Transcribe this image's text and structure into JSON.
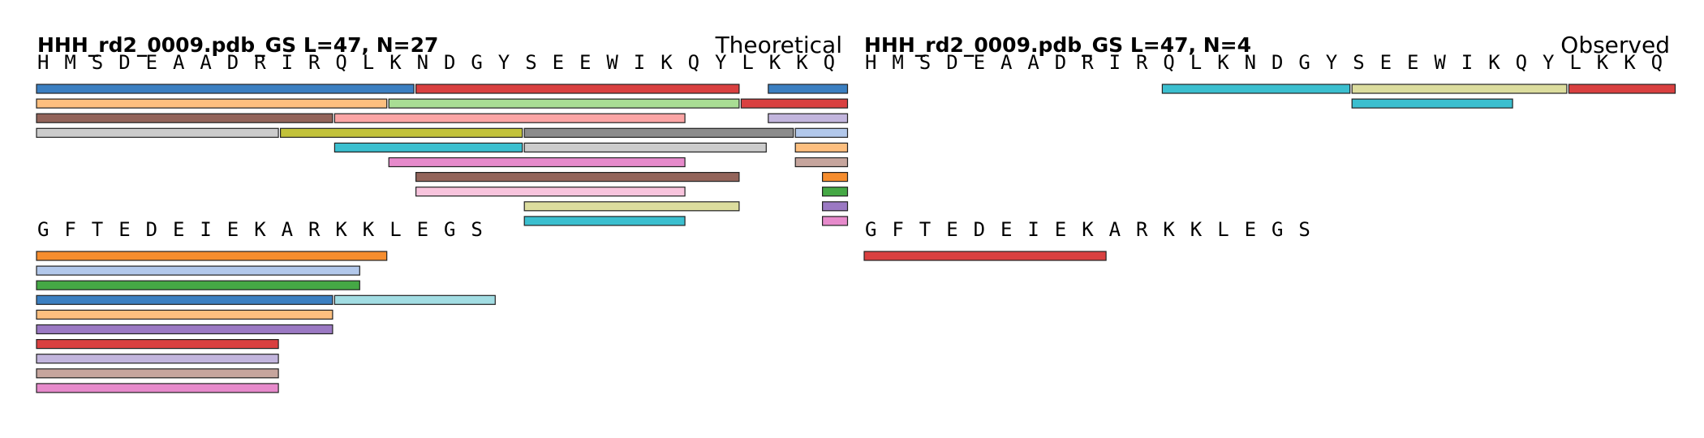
{
  "panels": [
    {
      "title": "HHH_rd2_0009.pdb_GS  L=47, N=27",
      "label": "Theoretical",
      "rows": [
        {
          "sequence": "HMSDEAADRIRQLKNDGYSEEWIKQYLKKQ",
          "start": 0,
          "tracks": [
            [
              {
                "s": 0,
                "e": 13,
                "c": "#3b7fc1"
              },
              {
                "s": 14,
                "e": 25,
                "c": "#d94040"
              },
              {
                "s": 27,
                "e": 29,
                "c": "#3b7fc1"
              }
            ],
            [
              {
                "s": 0,
                "e": 12,
                "c": "#fdbf7f"
              },
              {
                "s": 13,
                "e": 25,
                "c": "#a9dd94"
              },
              {
                "s": 26,
                "e": 29,
                "c": "#d94040"
              }
            ],
            [
              {
                "s": 0,
                "e": 10,
                "c": "#93645a"
              },
              {
                "s": 11,
                "e": 23,
                "c": "#fba5a5"
              },
              {
                "s": 27,
                "e": 29,
                "c": "#c2b5dd"
              }
            ],
            [
              {
                "s": 0,
                "e": 8,
                "c": "#cccccc"
              },
              {
                "s": 9,
                "e": 17,
                "c": "#c2c23a"
              },
              {
                "s": 18,
                "e": 27,
                "c": "#8c8c8c"
              },
              {
                "s": 28,
                "e": 29,
                "c": "#b2c8eb"
              }
            ],
            [
              {
                "s": 11,
                "e": 17,
                "c": "#3bbfcf"
              },
              {
                "s": 18,
                "e": 26,
                "c": "#cccccc"
              },
              {
                "s": 28,
                "e": 29,
                "c": "#fdbf7f"
              }
            ],
            [
              {
                "s": 13,
                "e": 23,
                "c": "#e68acb"
              },
              {
                "s": 28,
                "e": 29,
                "c": "#c6a59d"
              }
            ],
            [
              {
                "s": 14,
                "e": 25,
                "c": "#93645a"
              },
              {
                "s": 29,
                "e": 29,
                "c": "#f68d2e"
              }
            ],
            [
              {
                "s": 14,
                "e": 23,
                "c": "#f8c4dd"
              },
              {
                "s": 29,
                "e": 29,
                "c": "#45a845"
              }
            ],
            [
              {
                "s": 18,
                "e": 25,
                "c": "#dcdd9e"
              },
              {
                "s": 29,
                "e": 29,
                "c": "#9b79c3"
              }
            ],
            [
              {
                "s": 18,
                "e": 23,
                "c": "#3bbfcf"
              },
              {
                "s": 29,
                "e": 29,
                "c": "#e68acb"
              }
            ]
          ]
        },
        {
          "sequence": "GFTEDEIEKARKKLEGS",
          "start": 30,
          "tracks": [
            [
              {
                "s": 0,
                "e": 12,
                "c": "#f68d2e"
              }
            ],
            [
              {
                "s": 0,
                "e": 11,
                "c": "#b2c8eb"
              }
            ],
            [
              {
                "s": 0,
                "e": 11,
                "c": "#45a845"
              }
            ],
            [
              {
                "s": 0,
                "e": 10,
                "c": "#3b7fc1"
              },
              {
                "s": 11,
                "e": 16,
                "c": "#a2dde3"
              }
            ],
            [
              {
                "s": 0,
                "e": 10,
                "c": "#fdbf7f"
              }
            ],
            [
              {
                "s": 0,
                "e": 10,
                "c": "#9b79c3"
              }
            ],
            [
              {
                "s": 0,
                "e": 8,
                "c": "#d94040"
              }
            ],
            [
              {
                "s": 0,
                "e": 8,
                "c": "#c2b5dd"
              }
            ],
            [
              {
                "s": 0,
                "e": 8,
                "c": "#c6a59d"
              }
            ],
            [
              {
                "s": 0,
                "e": 8,
                "c": "#e68acb"
              }
            ]
          ]
        }
      ]
    },
    {
      "title": "HHH_rd2_0009.pdb_GS  L=47, N=4",
      "label": "Observed",
      "rows": [
        {
          "sequence": "HMSDEAADRIRQLKNDGYSEEWIKQYLKKQ",
          "start": 0,
          "tracks": [
            [
              {
                "s": 11,
                "e": 17,
                "c": "#3bbfcf"
              },
              {
                "s": 18,
                "e": 25,
                "c": "#dcdd9e"
              },
              {
                "s": 26,
                "e": 29,
                "c": "#d94040"
              }
            ],
            [
              {
                "s": 18,
                "e": 23,
                "c": "#3bbfcf"
              }
            ]
          ]
        },
        {
          "sequence": "GFTEDEIEKARKKLEGS",
          "start": 30,
          "tracks": [
            [
              {
                "s": 0,
                "e": 8,
                "c": "#d94040"
              }
            ]
          ]
        }
      ]
    }
  ]
}
